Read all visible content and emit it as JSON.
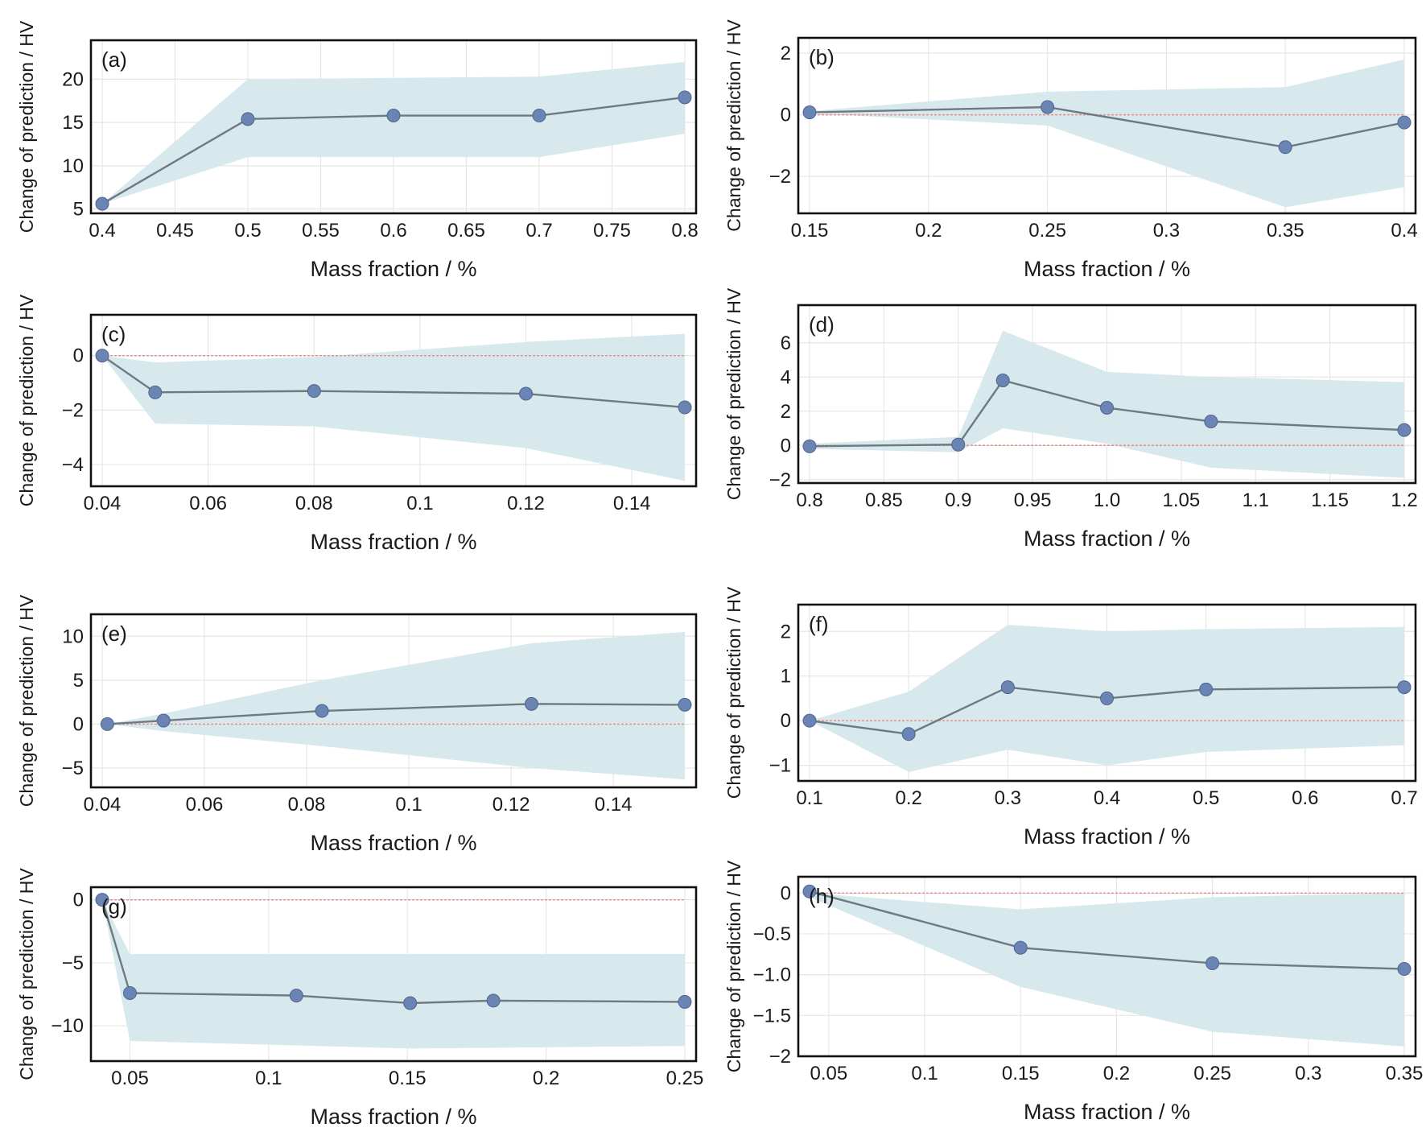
{
  "style": {
    "band_color": "#d7e9ec",
    "line_color": "#6d7a80",
    "point_color": "#6a84b4",
    "zero_line_color": "#e88a8a",
    "grid_color": "#e6e6e6"
  },
  "chart_data": [
    {
      "type": "line",
      "panel_label": "(a)",
      "xlabel": "Mass fraction / %",
      "ylabel": "Change of prediction / HV",
      "xlim": [
        0.4,
        0.8
      ],
      "ylim": [
        4.5,
        24.5
      ],
      "zero_line": false,
      "xticks": [
        0.4,
        0.45,
        0.5,
        0.55,
        0.6,
        0.65,
        0.7,
        0.75,
        0.8
      ],
      "xtick_labels": [
        "0.4",
        "0.45",
        "0.5",
        "0.55",
        "0.6",
        "0.65",
        "0.7",
        "0.75",
        "0.8"
      ],
      "yticks": [
        5,
        10,
        15,
        20
      ],
      "ytick_labels": [
        "5",
        "10",
        "15",
        "20"
      ],
      "x": [
        0.4,
        0.5,
        0.6,
        0.7,
        0.8
      ],
      "y": [
        5.6,
        15.4,
        15.8,
        15.8,
        17.9
      ],
      "band_x": [
        0.4,
        0.5,
        0.7,
        0.8
      ],
      "band_upper": [
        5.6,
        20.0,
        20.3,
        22.0
      ],
      "band_lower": [
        5.6,
        11.0,
        11.0,
        13.7
      ]
    },
    {
      "type": "line",
      "panel_label": "(b)",
      "xlabel": "Mass fraction / %",
      "ylabel": "Change of prediction / HV",
      "xlim": [
        0.15,
        0.4
      ],
      "ylim": [
        -3.2,
        2.5
      ],
      "zero_line": true,
      "xticks": [
        0.15,
        0.2,
        0.25,
        0.3,
        0.35,
        0.4
      ],
      "xtick_labels": [
        "0.15",
        "0.2",
        "0.25",
        "0.3",
        "0.35",
        "0.4"
      ],
      "yticks": [
        -2,
        0,
        2
      ],
      "ytick_labels": [
        "−2",
        "0",
        "2"
      ],
      "x": [
        0.15,
        0.25,
        0.35,
        0.4
      ],
      "y": [
        0.08,
        0.25,
        -1.05,
        -0.25
      ],
      "band_x": [
        0.15,
        0.25,
        0.35,
        0.4
      ],
      "band_upper": [
        0.12,
        0.75,
        0.9,
        1.8
      ],
      "band_lower": [
        0.05,
        -0.35,
        -3.0,
        -2.35
      ]
    },
    {
      "type": "line",
      "panel_label": "(c)",
      "xlabel": "Mass fraction / %",
      "ylabel": "Change of prediction / HV",
      "xlim": [
        0.04,
        0.15
      ],
      "ylim": [
        -4.8,
        1.5
      ],
      "zero_line": true,
      "xticks": [
        0.04,
        0.06,
        0.08,
        0.1,
        0.12,
        0.14
      ],
      "xtick_labels": [
        "0.04",
        "0.06",
        "0.08",
        "0.1",
        "0.12",
        "0.14"
      ],
      "yticks": [
        -4,
        -2,
        0
      ],
      "ytick_labels": [
        "−4",
        "−2",
        "0"
      ],
      "x": [
        0.04,
        0.05,
        0.08,
        0.12,
        0.15
      ],
      "y": [
        0.0,
        -1.35,
        -1.3,
        -1.4,
        -1.9
      ],
      "band_x": [
        0.04,
        0.05,
        0.08,
        0.12,
        0.15
      ],
      "band_upper": [
        0.0,
        -0.25,
        -0.05,
        0.5,
        0.8
      ],
      "band_lower": [
        0.0,
        -2.5,
        -2.6,
        -3.4,
        -4.6
      ]
    },
    {
      "type": "line",
      "panel_label": "(d)",
      "xlabel": "Mass fraction / %",
      "ylabel": "Change of prediction / HV",
      "xlim": [
        0.8,
        1.2
      ],
      "ylim": [
        -2.2,
        8.2
      ],
      "zero_line": true,
      "xticks": [
        0.8,
        0.85,
        0.9,
        0.95,
        1.0,
        1.05,
        1.1,
        1.15,
        1.2
      ],
      "xtick_labels": [
        "0.8",
        "0.85",
        "0.9",
        "0.95",
        "1.0",
        "1.05",
        "1.1",
        "1.15",
        "1.2"
      ],
      "yticks": [
        -2,
        0,
        2,
        4,
        6
      ],
      "ytick_labels": [
        "−2",
        "0",
        "2",
        "4",
        "6"
      ],
      "x": [
        0.8,
        0.9,
        0.93,
        1.0,
        1.07,
        1.2
      ],
      "y": [
        -0.05,
        0.05,
        3.8,
        2.2,
        1.4,
        0.9
      ],
      "band_x": [
        0.8,
        0.9,
        0.93,
        1.0,
        1.07,
        1.2
      ],
      "band_upper": [
        0.1,
        0.5,
        6.7,
        4.3,
        4.0,
        3.7
      ],
      "band_lower": [
        -0.2,
        -0.4,
        1.0,
        0.1,
        -1.3,
        -1.9
      ]
    },
    {
      "type": "line",
      "panel_label": "(e)",
      "xlabel": "Mass fraction / %",
      "ylabel": "Change of prediction / HV",
      "xlim": [
        0.04,
        0.154
      ],
      "ylim": [
        -7.2,
        12.5
      ],
      "zero_line": true,
      "xticks": [
        0.04,
        0.06,
        0.08,
        0.1,
        0.12,
        0.14
      ],
      "xtick_labels": [
        "0.04",
        "0.06",
        "0.08",
        "0.1",
        "0.12",
        "0.14"
      ],
      "yticks": [
        -5,
        0,
        5,
        10
      ],
      "ytick_labels": [
        "−5",
        "0",
        "5",
        "10"
      ],
      "x": [
        0.041,
        0.052,
        0.083,
        0.124,
        0.154
      ],
      "y": [
        0.0,
        0.4,
        1.5,
        2.3,
        2.2
      ],
      "band_x": [
        0.041,
        0.052,
        0.083,
        0.124,
        0.154
      ],
      "band_upper": [
        0.0,
        1.2,
        5.0,
        9.2,
        10.5
      ],
      "band_lower": [
        0.0,
        -0.8,
        -2.5,
        -5.0,
        -6.3
      ]
    },
    {
      "type": "line",
      "panel_label": "(f)",
      "xlabel": "Mass fraction / %",
      "ylabel": "Change of prediction / HV",
      "xlim": [
        0.1,
        0.7
      ],
      "ylim": [
        -1.35,
        2.6
      ],
      "zero_line": true,
      "xticks": [
        0.1,
        0.2,
        0.3,
        0.4,
        0.5,
        0.6,
        0.7
      ],
      "xtick_labels": [
        "0.1",
        "0.2",
        "0.3",
        "0.4",
        "0.5",
        "0.6",
        "0.7"
      ],
      "yticks": [
        -1,
        0,
        1,
        2
      ],
      "ytick_labels": [
        "−1",
        "0",
        "1",
        "2"
      ],
      "x": [
        0.1,
        0.2,
        0.3,
        0.4,
        0.5,
        0.7
      ],
      "y": [
        0.0,
        -0.3,
        0.75,
        0.5,
        0.7,
        0.75
      ],
      "band_x": [
        0.1,
        0.2,
        0.3,
        0.4,
        0.5,
        0.7
      ],
      "band_upper": [
        0.0,
        0.65,
        2.15,
        2.0,
        2.05,
        2.1
      ],
      "band_lower": [
        0.0,
        -1.15,
        -0.65,
        -1.0,
        -0.7,
        -0.55
      ]
    },
    {
      "type": "line",
      "panel_label": "(g)",
      "xlabel": "Mass fraction / %",
      "ylabel": "Change of prediction / HV",
      "xlim": [
        0.04,
        0.25
      ],
      "ylim": [
        -12.8,
        1.0
      ],
      "zero_line": true,
      "xticks": [
        0.05,
        0.1,
        0.15,
        0.2,
        0.25
      ],
      "xtick_labels": [
        "0.05",
        "0.1",
        "0.15",
        "0.2",
        "0.25"
      ],
      "yticks": [
        -10,
        -5,
        0
      ],
      "ytick_labels": [
        "−10",
        "−5",
        "0"
      ],
      "x": [
        0.04,
        0.05,
        0.11,
        0.151,
        0.181,
        0.25
      ],
      "y": [
        0.0,
        -7.4,
        -7.6,
        -8.2,
        -8.0,
        -8.1
      ],
      "band_x": [
        0.04,
        0.05,
        0.151,
        0.25
      ],
      "band_upper": [
        0.0,
        -4.3,
        -4.3,
        -4.3
      ],
      "band_lower": [
        0.0,
        -11.2,
        -11.8,
        -11.6
      ]
    },
    {
      "type": "line",
      "panel_label": "(h)",
      "xlabel": "Mass fraction / %",
      "ylabel": "Change of prediction / HV",
      "xlim": [
        0.04,
        0.35
      ],
      "ylim": [
        -2.0,
        0.2
      ],
      "zero_line": true,
      "xticks": [
        0.05,
        0.1,
        0.15,
        0.2,
        0.25,
        0.3,
        0.35
      ],
      "xtick_labels": [
        "0.05",
        "0.1",
        "0.15",
        "0.2",
        "0.25",
        "0.3",
        "0.35"
      ],
      "yticks": [
        -2,
        -1.5,
        -1,
        -0.5,
        0
      ],
      "ytick_labels": [
        "−2",
        "−1.5",
        "−1.0",
        "−0.5",
        "0"
      ],
      "x": [
        0.04,
        0.15,
        0.25,
        0.35
      ],
      "y": [
        0.02,
        -0.67,
        -0.86,
        -0.93
      ],
      "band_x": [
        0.04,
        0.15,
        0.25,
        0.35
      ],
      "band_upper": [
        0.0,
        -0.2,
        -0.05,
        0.0
      ],
      "band_lower": [
        -0.05,
        -1.15,
        -1.7,
        -1.88
      ]
    }
  ]
}
